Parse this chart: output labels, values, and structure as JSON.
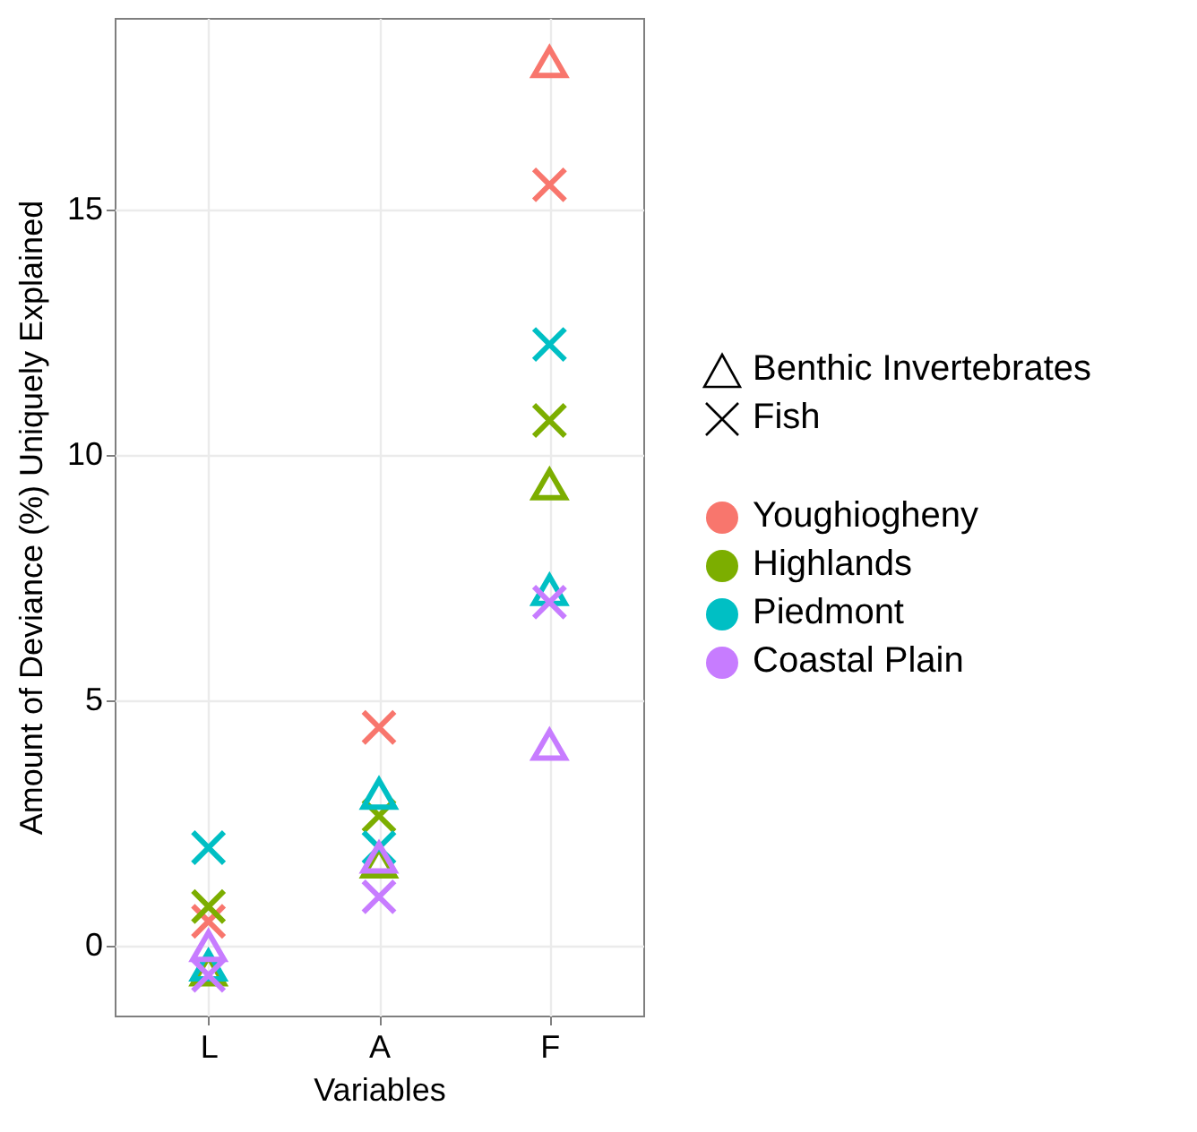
{
  "chart_data": {
    "type": "scatter",
    "xlabel": "Variables",
    "ylabel": "Amount of Deviance (%) Uniquely Explained",
    "categories": [
      "L",
      "A",
      "F"
    ],
    "series": [
      {
        "marker": "triangle",
        "color": "#f8766d",
        "values": [
          null,
          null,
          18.0
        ]
      },
      {
        "marker": "cross",
        "color": "#f8766d",
        "values": [
          0.5,
          4.45,
          15.5
        ]
      },
      {
        "marker": "triangle",
        "color": "#7cae00",
        "values": [
          -0.5,
          1.7,
          9.4
        ]
      },
      {
        "marker": "cross",
        "color": "#7cae00",
        "values": [
          0.8,
          2.65,
          10.7
        ]
      },
      {
        "marker": "triangle",
        "color": "#00bfc4",
        "values": [
          -0.4,
          3.1,
          7.25
        ]
      },
      {
        "marker": "cross",
        "color": "#00bfc4",
        "values": [
          2.0,
          2.0,
          12.25
        ]
      },
      {
        "marker": "triangle",
        "color": "#c77cff",
        "values": [
          0.0,
          1.8,
          4.1
        ]
      },
      {
        "marker": "cross",
        "color": "#c77cff",
        "values": [
          -0.6,
          1.0,
          7.0
        ]
      }
    ],
    "annotations": [
      "Benthic Invertebrates",
      "Fish",
      "Youghiogheny",
      "Highlands",
      "Piedmont",
      "Coastal Plain"
    ],
    "ylim": [
      -1.42,
      18.9
    ],
    "yticks": [
      0,
      5,
      10,
      15
    ],
    "grid": true
  }
}
